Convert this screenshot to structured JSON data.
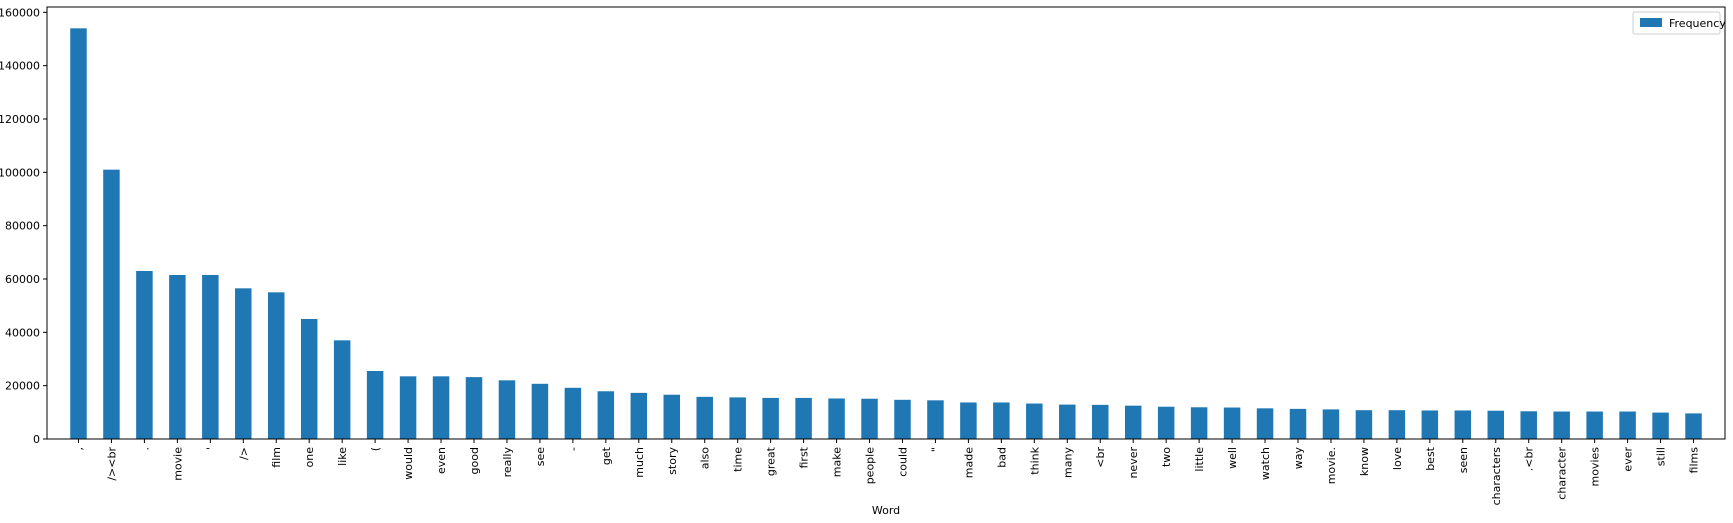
{
  "chart_data": {
    "type": "bar",
    "xlabel": "Word",
    "ylabel": "",
    "ylim": [
      0,
      162000
    ],
    "yticks": [
      0,
      20000,
      40000,
      60000,
      80000,
      100000,
      120000,
      140000,
      160000
    ],
    "grid": false,
    "legend_position": "top-right",
    "bar_color": "#1f77b4",
    "categories": [
      ",",
      "/><br",
      ".",
      "movie",
      "'",
      "/>",
      "film",
      "one",
      "like",
      "(",
      "would",
      "even",
      "good",
      "really",
      "see",
      "-",
      "get",
      "much",
      "story",
      "also",
      "time",
      "great",
      "first",
      "make",
      "people",
      "could",
      "\"",
      "made",
      "bad",
      "think",
      "many",
      "<br",
      "never",
      "two",
      "little",
      "well",
      "watch",
      "way",
      "movie.",
      "know",
      "love",
      "best",
      "seen",
      "characters",
      ".<br",
      "character",
      "movies",
      "ever",
      "still",
      "films"
    ],
    "series": [
      {
        "name": "Frequency",
        "values": [
          154000,
          101000,
          63000,
          61500,
          61500,
          56500,
          55000,
          45000,
          37000,
          25500,
          23500,
          23500,
          23200,
          22000,
          20700,
          19200,
          17900,
          17300,
          16600,
          15800,
          15600,
          15400,
          15400,
          15200,
          15100,
          14700,
          14500,
          13700,
          13700,
          13300,
          12900,
          12800,
          12500,
          12100,
          11900,
          11800,
          11500,
          11300,
          11100,
          10800,
          10800,
          10700,
          10700,
          10600,
          10400,
          10300,
          10300,
          10300,
          9900,
          9600
        ]
      }
    ]
  }
}
